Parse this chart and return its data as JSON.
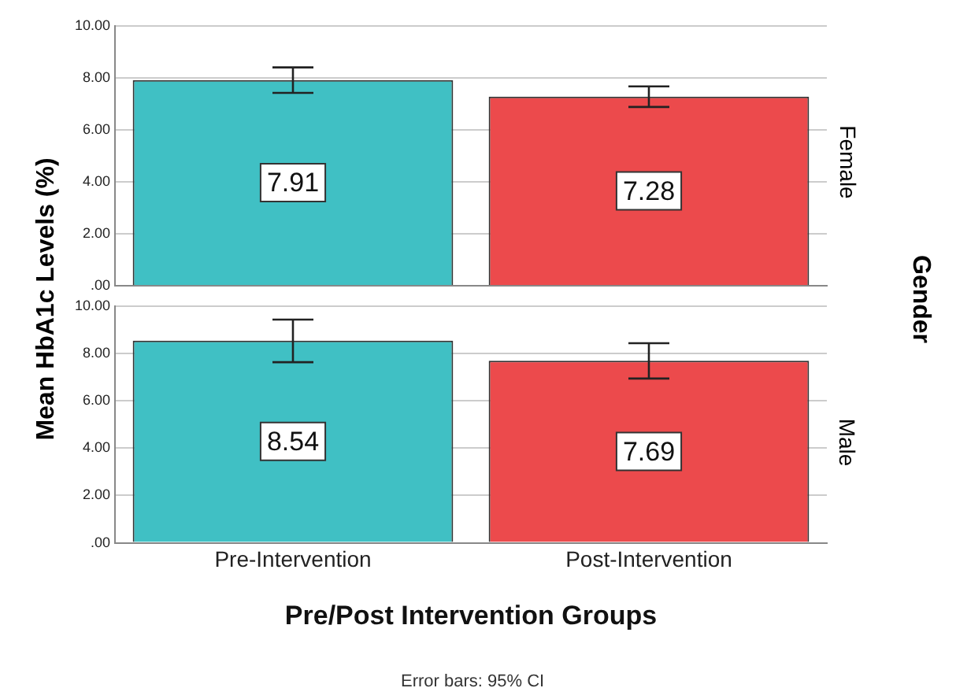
{
  "chart_data": [
    {
      "type": "bar",
      "ylabel": "Mean HbA1c Levels (%)",
      "y2label": "Female",
      "annotations": [
        "Gender"
      ],
      "categories": [
        null,
        null
      ],
      "values": [
        7.91,
        7.28
      ],
      "colors": [
        "#40c0c4",
        "#ec4a4c"
      ],
      "errors": [
        [
          7.42,
          8.4
        ],
        [
          6.88,
          7.67
        ]
      ],
      "data_labels": true,
      "ylim": [
        0,
        10
      ],
      "yticks": [
        {
          "value": 0,
          "label": ".00"
        },
        {
          "value": 2,
          "label": "2.00"
        },
        {
          "value": 4,
          "label": "4.00"
        },
        {
          "value": 6,
          "label": "6.00"
        },
        {
          "value": 8,
          "label": "8.00"
        },
        {
          "value": 10,
          "label": "10.00"
        }
      ],
      "grid": "y",
      "tick_labels": "y"
    },
    {
      "type": "bar",
      "xlabel": "Pre/Post Intervention Groups",
      "y2label": "Male",
      "annotations": [
        "Error bars: 95% CI"
      ],
      "categories": [
        "Pre-Intervention",
        "Post-Intervention"
      ],
      "values": [
        8.54,
        7.69
      ],
      "colors": [
        "#40c0c4",
        "#ec4a4c"
      ],
      "errors": [
        [
          7.63,
          9.43
        ],
        [
          6.94,
          8.43
        ]
      ],
      "data_labels": true,
      "ylim": [
        0,
        10
      ],
      "yticks": [
        {
          "value": 0,
          "label": ".00"
        },
        {
          "value": 2,
          "label": "2.00"
        },
        {
          "value": 4,
          "label": "4.00"
        },
        {
          "value": 6,
          "label": "6.00"
        },
        {
          "value": 8,
          "label": "8.00"
        },
        {
          "value": 10,
          "label": "10.00"
        }
      ],
      "grid": "y"
    }
  ]
}
